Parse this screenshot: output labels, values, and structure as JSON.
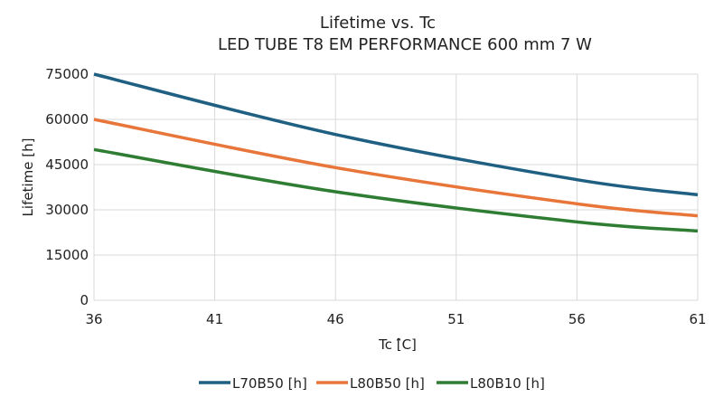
{
  "chart_data": {
    "type": "line",
    "title": "Lifetime vs. Tc",
    "subtitle": "LED TUBE T8 EM PERFORMANCE 600 mm 7 W",
    "xlabel": "Tc [̂C]",
    "ylabel": "Lifetime [h]",
    "x": [
      36,
      46,
      56,
      61
    ],
    "xlim": [
      36,
      61
    ],
    "ylim": [
      0,
      75000
    ],
    "xticks": [
      "36",
      "41",
      "46",
      "51",
      "56",
      "61"
    ],
    "yticks": [
      "0",
      "15000",
      "30000",
      "45000",
      "60000",
      "75000"
    ],
    "grid": true,
    "legend_position": "bottom",
    "series": [
      {
        "name": "L70B50 [h]",
        "color": "#1f5f82",
        "values": [
          75000,
          55000,
          40000,
          35000
        ]
      },
      {
        "name": "L80B50 [h]",
        "color": "#e8763a",
        "values": [
          60000,
          44000,
          32000,
          28000
        ]
      },
      {
        "name": "L80B10 [h]",
        "color": "#2e7d32",
        "values": [
          50000,
          36000,
          26000,
          23000
        ]
      }
    ]
  }
}
